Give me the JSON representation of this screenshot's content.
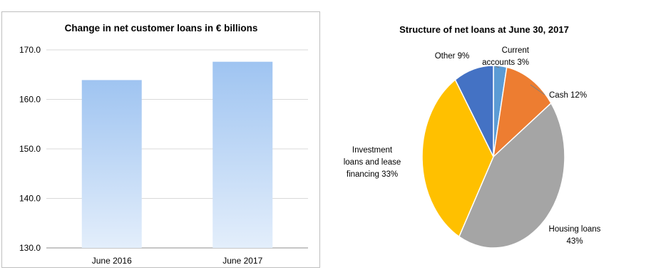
{
  "chart_data": [
    {
      "type": "bar",
      "title": "Change in net customer loans in € billions",
      "categories": [
        "June 2016",
        "June 2017"
      ],
      "values": [
        163.9,
        167.6
      ],
      "ylim": [
        130.0,
        170.0
      ],
      "yticks": [
        "130.0",
        "140.0",
        "150.0",
        "160.0",
        "170.0"
      ],
      "grid": true,
      "color": "#a9cbf3"
    },
    {
      "type": "pie",
      "title": "Structure of net loans at June 30, 2017",
      "slices": [
        {
          "label": "Current accounts 3%",
          "value": 3,
          "color": "#5b9bd5"
        },
        {
          "label": "Cash 12%",
          "value": 12,
          "color": "#ed7d31"
        },
        {
          "label": "Housing loans 43%",
          "value": 43,
          "color": "#a5a5a5"
        },
        {
          "label": "Investment loans and lease financing 33%",
          "value": 33,
          "color": "#ffc000"
        },
        {
          "label": "Other 9%",
          "value": 9,
          "color": "#4472c4"
        }
      ]
    }
  ]
}
